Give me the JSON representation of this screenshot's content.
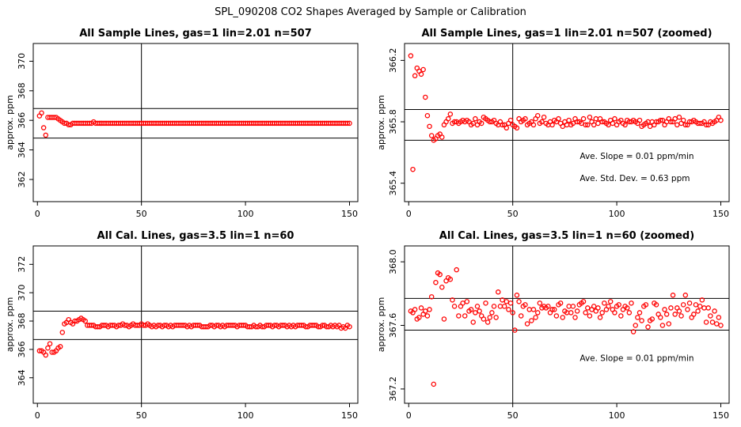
{
  "figure": {
    "title": "SPL_090208  CO2 Shapes Averaged by Sample or Calibration"
  },
  "chart_data": [
    {
      "type": "scatter",
      "title": "All Sample Lines, gas=1 lin=2.01 n=507",
      "xlabel": "",
      "ylabel": "approx. ppm",
      "xlim": [
        -2,
        154
      ],
      "ylim": [
        360.5,
        371.2
      ],
      "xticks": [
        0,
        50,
        100,
        150
      ],
      "yticks": [
        362,
        364,
        366,
        368,
        370
      ],
      "color": "#ff0000",
      "vline": 50,
      "hlines": [
        364.8,
        366.8
      ],
      "annotations": [],
      "series": [
        {
          "x_start": 1,
          "values": [
            366.3,
            366.5,
            365.5,
            365.0,
            366.2,
            366.2,
            366.2,
            366.2,
            366.2,
            366.1,
            366.0,
            365.9,
            365.8,
            365.8,
            365.7,
            365.7,
            365.8,
            365.8,
            365.8,
            365.8,
            365.8,
            365.8,
            365.8,
            365.8,
            365.8,
            365.8,
            365.9,
            365.8,
            365.8,
            365.8,
            365.8,
            365.8,
            365.8,
            365.8,
            365.8,
            365.8,
            365.8,
            365.8,
            365.8,
            365.8,
            365.8,
            365.8,
            365.8,
            365.8,
            365.8,
            365.8,
            365.8,
            365.8,
            365.8,
            365.8,
            365.8,
            365.8,
            365.8,
            365.8,
            365.8,
            365.8,
            365.8,
            365.8,
            365.8,
            365.8,
            365.8,
            365.8,
            365.8,
            365.8,
            365.8,
            365.8,
            365.8,
            365.8,
            365.8,
            365.8,
            365.8,
            365.8,
            365.8,
            365.8,
            365.8,
            365.8,
            365.8,
            365.8,
            365.8,
            365.8,
            365.8,
            365.8,
            365.8,
            365.8,
            365.8,
            365.8,
            365.8,
            365.8,
            365.8,
            365.8,
            365.8,
            365.8,
            365.8,
            365.8,
            365.8,
            365.8,
            365.8,
            365.8,
            365.8,
            365.8,
            365.8,
            365.8,
            365.8,
            365.8,
            365.8,
            365.8,
            365.8,
            365.8,
            365.8,
            365.8,
            365.8,
            365.8,
            365.8,
            365.8,
            365.8,
            365.8,
            365.8,
            365.8,
            365.8,
            365.8,
            365.8,
            365.8,
            365.8,
            365.8,
            365.8,
            365.8,
            365.8,
            365.8,
            365.8,
            365.8,
            365.8,
            365.8,
            365.8,
            365.8,
            365.8,
            365.8,
            365.8,
            365.8,
            365.8,
            365.8,
            365.8,
            365.8,
            365.8,
            365.8,
            365.8,
            365.8,
            365.8,
            365.8,
            365.8,
            365.8
          ]
        }
      ]
    },
    {
      "type": "scatter",
      "title": "All Sample Lines, gas=1 lin=2.01 n=507 (zoomed)",
      "xlabel": "",
      "ylabel": "approx. ppm",
      "xlim": [
        -2,
        154
      ],
      "ylim": [
        365.28,
        366.31
      ],
      "xticks": [
        0,
        50,
        100,
        150
      ],
      "yticks": [
        365.4,
        365.8,
        366.2
      ],
      "color": "#ff0000",
      "vline": 50,
      "hlines": [
        365.68,
        365.88
      ],
      "annotations": [
        "Ave. Slope =  0.01  ppm/min",
        "Ave. Std. Dev. =  0.63  ppm"
      ],
      "series": [
        {
          "x_start": 1,
          "values": [
            366.23,
            365.49,
            366.1,
            366.15,
            366.13,
            366.11,
            366.14,
            365.96,
            365.84,
            365.77,
            365.71,
            365.68,
            365.69,
            365.71,
            365.72,
            365.7,
            365.78,
            365.8,
            365.82,
            365.85,
            365.79,
            365.8,
            365.8,
            365.79,
            365.8,
            365.81,
            365.8,
            365.81,
            365.8,
            365.78,
            365.79,
            365.82,
            365.78,
            365.8,
            365.79,
            365.83,
            365.82,
            365.81,
            365.8,
            365.8,
            365.81,
            365.79,
            365.78,
            365.8,
            365.78,
            365.78,
            365.76,
            365.79,
            365.81,
            365.78,
            365.77,
            365.76,
            365.82,
            365.8,
            365.81,
            365.82,
            365.78,
            365.79,
            365.8,
            365.78,
            365.82,
            365.84,
            365.79,
            365.8,
            365.83,
            365.79,
            365.78,
            365.8,
            365.78,
            365.81,
            365.8,
            365.82,
            365.79,
            365.77,
            365.8,
            365.78,
            365.81,
            365.78,
            365.79,
            365.82,
            365.8,
            365.8,
            365.79,
            365.82,
            365.78,
            365.78,
            365.83,
            365.8,
            365.78,
            365.82,
            365.79,
            365.82,
            365.8,
            365.8,
            365.79,
            365.78,
            365.81,
            365.79,
            365.82,
            365.78,
            365.8,
            365.81,
            365.79,
            365.78,
            365.81,
            365.8,
            365.8,
            365.81,
            365.8,
            365.79,
            365.81,
            365.77,
            365.78,
            365.79,
            365.8,
            365.77,
            365.8,
            365.78,
            365.8,
            365.8,
            365.81,
            365.81,
            365.78,
            365.8,
            365.82,
            365.8,
            365.8,
            365.82,
            365.78,
            365.83,
            365.79,
            365.81,
            365.78,
            365.78,
            365.8,
            365.8,
            365.81,
            365.8,
            365.79,
            365.79,
            365.79,
            365.8,
            365.78,
            365.78,
            365.8,
            365.79,
            365.8,
            365.81,
            365.83,
            365.81
          ]
        }
      ]
    },
    {
      "type": "scatter",
      "title": "All Cal. Lines, gas=3.5 lin=1 n=60",
      "xlabel": "",
      "ylabel": "approx. ppm",
      "xlim": [
        -2,
        154
      ],
      "ylim": [
        362.2,
        373.3
      ],
      "xticks": [
        0,
        50,
        100,
        150
      ],
      "yticks": [
        364,
        366,
        368,
        370,
        372
      ],
      "color": "#ff0000",
      "vline": 50,
      "hlines": [
        366.7,
        368.7
      ],
      "annotations": [],
      "series": [
        {
          "x_start": 1,
          "values": [
            365.9,
            365.9,
            365.8,
            365.6,
            366.1,
            366.4,
            365.8,
            365.8,
            365.9,
            366.1,
            366.2,
            367.2,
            367.8,
            367.9,
            368.1,
            367.9,
            367.8,
            368.0,
            368.0,
            368.1,
            368.2,
            368.1,
            368.0,
            367.7,
            367.7,
            367.7,
            367.7,
            367.6,
            367.6,
            367.6,
            367.7,
            367.7,
            367.7,
            367.6,
            367.7,
            367.7,
            367.7,
            367.6,
            367.7,
            367.7,
            367.8,
            367.7,
            367.7,
            367.6,
            367.7,
            367.8,
            367.7,
            367.7,
            367.7,
            367.8,
            367.7,
            367.7,
            367.8,
            367.7,
            367.6,
            367.7,
            367.6,
            367.7,
            367.7,
            367.6,
            367.7,
            367.7,
            367.6,
            367.7,
            367.6,
            367.7,
            367.7,
            367.7,
            367.7,
            367.7,
            367.7,
            367.6,
            367.7,
            367.6,
            367.7,
            367.7,
            367.7,
            367.7,
            367.6,
            367.6,
            367.6,
            367.6,
            367.7,
            367.7,
            367.6,
            367.7,
            367.7,
            367.6,
            367.7,
            367.6,
            367.7,
            367.7,
            367.7,
            367.7,
            367.7,
            367.6,
            367.7,
            367.7,
            367.7,
            367.7,
            367.6,
            367.6,
            367.6,
            367.7,
            367.6,
            367.6,
            367.7,
            367.6,
            367.6,
            367.7,
            367.7,
            367.7,
            367.6,
            367.7,
            367.7,
            367.6,
            367.7,
            367.7,
            367.7,
            367.6,
            367.7,
            367.6,
            367.7,
            367.6,
            367.7,
            367.7,
            367.7,
            367.7,
            367.6,
            367.6,
            367.7,
            367.7,
            367.7,
            367.7,
            367.6,
            367.6,
            367.7,
            367.7,
            367.6,
            367.6,
            367.7,
            367.6,
            367.7,
            367.6,
            367.7,
            367.5,
            367.6,
            367.5,
            367.7,
            367.6
          ]
        }
      ]
    },
    {
      "type": "scatter",
      "title": "All Cal. Lines, gas=3.5 lin=1 n=60 (zoomed)",
      "xlabel": "",
      "ylabel": "approx. ppm",
      "xlim": [
        -2,
        154
      ],
      "ylim": [
        367.11,
        368.1
      ],
      "xticks": [
        0,
        50,
        100,
        150
      ],
      "yticks": [
        367.2,
        367.6,
        368.0
      ],
      "color": "#ff0000",
      "vline": 50,
      "hlines": [
        367.57,
        367.77
      ],
      "annotations": [
        "Ave. Slope =  0.01  ppm/min"
      ],
      "series": [
        {
          "x_start": 1,
          "values": [
            367.69,
            367.68,
            367.7,
            367.64,
            367.65,
            367.71,
            367.67,
            367.69,
            367.66,
            367.7,
            367.78,
            367.23,
            367.87,
            367.93,
            367.92,
            367.84,
            367.64,
            367.88,
            367.9,
            367.89,
            367.76,
            367.72,
            367.95,
            367.66,
            367.72,
            367.74,
            367.66,
            367.75,
            367.69,
            367.7,
            367.62,
            367.68,
            367.72,
            367.69,
            367.66,
            367.64,
            367.74,
            367.62,
            367.65,
            367.68,
            367.72,
            367.65,
            367.81,
            367.72,
            367.76,
            367.72,
            367.75,
            367.7,
            367.74,
            367.68,
            367.57,
            367.79,
            367.75,
            367.66,
            367.72,
            367.73,
            367.61,
            367.7,
            367.63,
            367.7,
            367.65,
            367.68,
            367.74,
            367.71,
            367.72,
            367.71,
            367.72,
            367.68,
            367.7,
            367.7,
            367.66,
            367.73,
            367.74,
            367.65,
            367.69,
            367.68,
            367.72,
            367.68,
            367.72,
            367.65,
            367.69,
            367.73,
            367.74,
            367.75,
            367.68,
            367.71,
            367.66,
            367.7,
            367.72,
            367.69,
            367.71,
            367.65,
            367.68,
            367.74,
            367.7,
            367.72,
            367.75,
            367.7,
            367.68,
            367.72,
            367.73,
            367.66,
            367.7,
            367.72,
            367.71,
            367.68,
            367.74,
            367.56,
            367.6,
            367.65,
            367.68,
            367.63,
            367.72,
            367.73,
            367.59,
            367.63,
            367.64,
            367.74,
            367.73,
            367.67,
            367.65,
            367.6,
            367.7,
            367.67,
            367.61,
            367.71,
            367.79,
            367.67,
            367.71,
            367.69,
            367.66,
            367.73,
            367.79,
            367.7,
            367.74,
            367.65,
            367.67,
            367.73,
            367.69,
            367.72,
            367.76,
            367.71,
            367.62,
            367.71,
            367.66,
            367.62,
            367.69,
            367.61,
            367.65,
            367.6
          ]
        }
      ]
    }
  ]
}
